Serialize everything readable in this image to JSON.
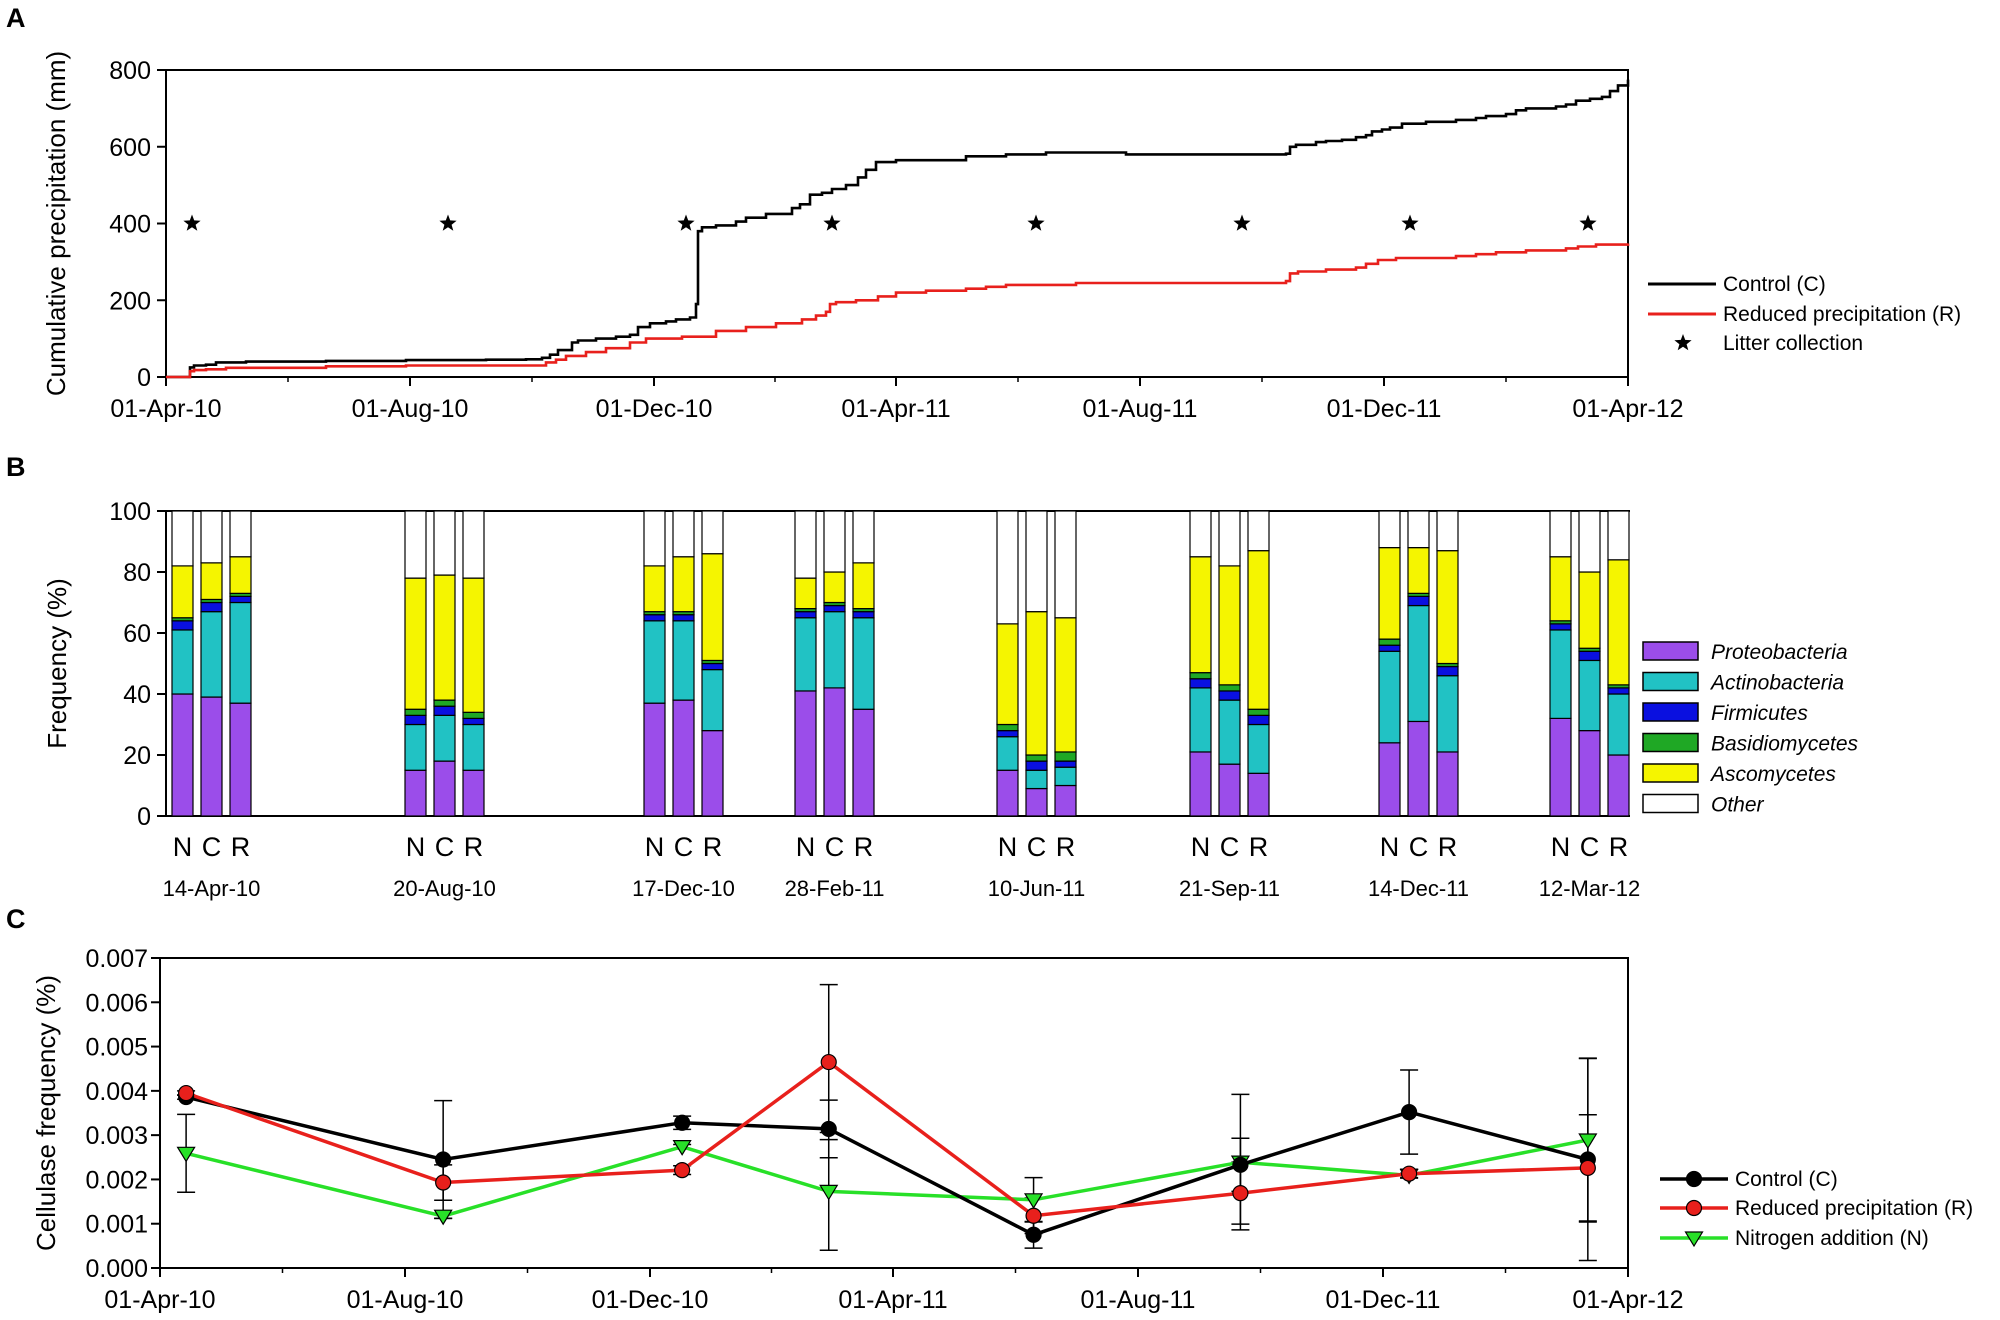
{
  "chart_data": [
    {
      "panel": "A",
      "type": "line",
      "ylabel": "Cumulative precipitation (mm)",
      "ylim": [
        0,
        800
      ],
      "yticks": [
        0,
        200,
        400,
        600,
        800
      ],
      "xdomain_days": [
        0,
        731
      ],
      "xticks": [
        {
          "label": "01-Apr-10",
          "day": 0
        },
        {
          "label": "01-Aug-10",
          "day": 122
        },
        {
          "label": "01-Dec-10",
          "day": 244
        },
        {
          "label": "01-Apr-11",
          "day": 365
        },
        {
          "label": "01-Aug-11",
          "day": 487
        },
        {
          "label": "01-Dec-11",
          "day": 609
        },
        {
          "label": "01-Apr-12",
          "day": 731
        }
      ],
      "series": [
        {
          "name": "Control (C)",
          "color": "#000000",
          "points": [
            [
              0,
              0
            ],
            [
              10,
              0
            ],
            [
              12,
              25
            ],
            [
              14,
              30
            ],
            [
              20,
              32
            ],
            [
              25,
              38
            ],
            [
              40,
              40
            ],
            [
              80,
              42
            ],
            [
              120,
              44
            ],
            [
              160,
              45
            ],
            [
              180,
              46
            ],
            [
              188,
              50
            ],
            [
              192,
              58
            ],
            [
              196,
              70
            ],
            [
              200,
              70
            ],
            [
              203,
              90
            ],
            [
              206,
              95
            ],
            [
              215,
              100
            ],
            [
              225,
              105
            ],
            [
              232,
              110
            ],
            [
              236,
              130
            ],
            [
              242,
              140
            ],
            [
              250,
              145
            ],
            [
              255,
              150
            ],
            [
              262,
              155
            ],
            [
              265,
              190
            ],
            [
              266,
              380
            ],
            [
              268,
              390
            ],
            [
              275,
              395
            ],
            [
              285,
              405
            ],
            [
              290,
              415
            ],
            [
              300,
              425
            ],
            [
              310,
              425
            ],
            [
              313,
              440
            ],
            [
              317,
              450
            ],
            [
              322,
              475
            ],
            [
              328,
              480
            ],
            [
              333,
              490
            ],
            [
              340,
              500
            ],
            [
              346,
              520
            ],
            [
              350,
              540
            ],
            [
              355,
              560
            ],
            [
              365,
              565
            ],
            [
              400,
              575
            ],
            [
              420,
              580
            ],
            [
              440,
              585
            ],
            [
              460,
              585
            ],
            [
              480,
              580
            ],
            [
              530,
              580
            ],
            [
              555,
              580
            ],
            [
              560,
              582
            ],
            [
              562,
              600
            ],
            [
              565,
              605
            ],
            [
              575,
              612
            ],
            [
              580,
              615
            ],
            [
              588,
              618
            ],
            [
              595,
              625
            ],
            [
              600,
              630
            ],
            [
              603,
              640
            ],
            [
              608,
              645
            ],
            [
              612,
              650
            ],
            [
              618,
              660
            ],
            [
              630,
              665
            ],
            [
              645,
              670
            ],
            [
              655,
              675
            ],
            [
              660,
              680
            ],
            [
              670,
              685
            ],
            [
              675,
              695
            ],
            [
              680,
              700
            ],
            [
              695,
              705
            ],
            [
              700,
              710
            ],
            [
              705,
              720
            ],
            [
              712,
              725
            ],
            [
              718,
              730
            ],
            [
              722,
              745
            ],
            [
              726,
              760
            ],
            [
              731,
              775
            ]
          ]
        },
        {
          "name": "Reduced precipitation (R)",
          "color": "#e8201c",
          "points": [
            [
              0,
              0
            ],
            [
              10,
              0
            ],
            [
              12,
              15
            ],
            [
              14,
              18
            ],
            [
              20,
              20
            ],
            [
              30,
              24
            ],
            [
              80,
              28
            ],
            [
              120,
              30
            ],
            [
              188,
              30
            ],
            [
              190,
              38
            ],
            [
              195,
              45
            ],
            [
              200,
              55
            ],
            [
              210,
              65
            ],
            [
              220,
              75
            ],
            [
              232,
              90
            ],
            [
              240,
              100
            ],
            [
              258,
              105
            ],
            [
              275,
              120
            ],
            [
              290,
              130
            ],
            [
              305,
              140
            ],
            [
              318,
              150
            ],
            [
              325,
              160
            ],
            [
              330,
              170
            ],
            [
              332,
              190
            ],
            [
              335,
              195
            ],
            [
              345,
              200
            ],
            [
              356,
              210
            ],
            [
              365,
              220
            ],
            [
              380,
              225
            ],
            [
              400,
              230
            ],
            [
              410,
              235
            ],
            [
              420,
              240
            ],
            [
              455,
              245
            ],
            [
              555,
              245
            ],
            [
              560,
              250
            ],
            [
              562,
              270
            ],
            [
              566,
              275
            ],
            [
              580,
              280
            ],
            [
              595,
              285
            ],
            [
              600,
              295
            ],
            [
              606,
              305
            ],
            [
              615,
              310
            ],
            [
              635,
              310
            ],
            [
              645,
              315
            ],
            [
              655,
              320
            ],
            [
              665,
              325
            ],
            [
              680,
              330
            ],
            [
              700,
              335
            ],
            [
              706,
              340
            ],
            [
              715,
              345
            ],
            [
              731,
              348
            ]
          ]
        },
        {
          "name": "Litter collection",
          "marker": "star",
          "x_days": [
            13,
            141,
            260,
            333,
            435,
            538,
            622,
            711
          ],
          "y": 400
        }
      ]
    },
    {
      "panel": "B",
      "type": "bar",
      "stacked": true,
      "ylabel": "Frequency (%)",
      "ylim": [
        0,
        100
      ],
      "yticks": [
        0,
        20,
        40,
        60,
        80,
        100
      ],
      "treatments": [
        "N",
        "C",
        "R"
      ],
      "dates": [
        "14-Apr-10",
        "20-Aug-10",
        "17-Dec-10",
        "28-Feb-11",
        "10-Jun-11",
        "21-Sep-11",
        "14-Dec-11",
        "12-Mar-12"
      ],
      "layers": [
        {
          "name": "Proteobacteria",
          "color": "#9b4dea"
        },
        {
          "name": "Actinobacteria",
          "color": "#21c2c4"
        },
        {
          "name": "Firmicutes",
          "color": "#0a10e0"
        },
        {
          "name": "Basidiomycetes",
          "color": "#1fa825"
        },
        {
          "name": "Ascomycetes",
          "color": "#f5f500"
        },
        {
          "name": "Other",
          "color": "#ffffff"
        }
      ],
      "values": [
        [
          [
            40,
            21,
            3,
            1,
            17,
            18
          ],
          [
            39,
            28,
            3,
            1,
            12,
            17
          ],
          [
            37,
            33,
            2,
            1,
            12,
            15
          ]
        ],
        [
          [
            15,
            15,
            3,
            2,
            43,
            22
          ],
          [
            18,
            15,
            3,
            2,
            41,
            21
          ],
          [
            15,
            15,
            2,
            2,
            44,
            22
          ]
        ],
        [
          [
            37,
            27,
            2,
            1,
            15,
            18
          ],
          [
            38,
            26,
            2,
            1,
            18,
            15
          ],
          [
            28,
            20,
            2,
            1,
            35,
            14
          ]
        ],
        [
          [
            41,
            24,
            2,
            1,
            10,
            22
          ],
          [
            42,
            25,
            2,
            1,
            10,
            20
          ],
          [
            35,
            30,
            2,
            1,
            15,
            17
          ]
        ],
        [
          [
            15,
            11,
            2,
            2,
            33,
            37
          ],
          [
            9,
            6,
            3,
            2,
            47,
            33
          ],
          [
            10,
            6,
            2,
            3,
            44,
            35
          ]
        ],
        [
          [
            21,
            21,
            3,
            2,
            38,
            15
          ],
          [
            17,
            21,
            3,
            2,
            39,
            18
          ],
          [
            14,
            16,
            3,
            2,
            52,
            13
          ]
        ],
        [
          [
            24,
            30,
            2,
            2,
            30,
            12
          ],
          [
            31,
            38,
            3,
            1,
            15,
            12
          ],
          [
            21,
            25,
            3,
            1,
            37,
            13
          ]
        ],
        [
          [
            32,
            29,
            2,
            1,
            21,
            15
          ],
          [
            28,
            23,
            3,
            1,
            25,
            20
          ],
          [
            20,
            20,
            2,
            1,
            41,
            16
          ]
        ]
      ]
    },
    {
      "panel": "C",
      "type": "line",
      "ylabel": "Cellulase frequency (%)",
      "ylim": [
        0,
        0.007
      ],
      "yticks": [
        "0.000",
        "0.001",
        "0.002",
        "0.003",
        "0.004",
        "0.005",
        "0.006",
        "0.007"
      ],
      "xdomain_days": [
        0,
        731
      ],
      "xticks": [
        {
          "label": "01-Apr-10",
          "day": 0
        },
        {
          "label": "01-Aug-10",
          "day": 122
        },
        {
          "label": "01-Dec-10",
          "day": 244
        },
        {
          "label": "01-Apr-11",
          "day": 365
        },
        {
          "label": "01-Aug-11",
          "day": 487
        },
        {
          "label": "01-Dec-11",
          "day": 609
        },
        {
          "label": "01-Apr-12",
          "day": 731
        }
      ],
      "x_days": [
        13,
        141,
        260,
        333,
        435,
        538,
        622,
        711
      ],
      "series": [
        {
          "name": "Control (C)",
          "color": "#000000",
          "marker": "circle",
          "values": [
            0.00386,
            0.00245,
            0.00328,
            0.00314,
            0.00075,
            0.00233,
            0.00352,
            0.00245
          ],
          "errors": [
            5e-05,
            0.00133,
            0.00015,
            0.00065,
            0.0003,
            0.0006,
            0.00095,
            0.00228
          ]
        },
        {
          "name": "Reduced precipitation (R)",
          "color": "#e8201c",
          "marker": "circle",
          "values": [
            0.00395,
            0.00193,
            0.00221,
            0.00465,
            0.00118,
            0.00169,
            0.00213,
            0.00226
          ],
          "errors": [
            5e-05,
            0.0004,
            0.0001,
            0.00175,
            0.0004,
            0.0007,
            0.0001,
            0.0012
          ]
        },
        {
          "name": "Nitrogen addition (N)",
          "color": "#28e028",
          "marker": "triangle-down",
          "values": [
            0.00259,
            0.00117,
            0.00274,
            0.00173,
            0.00154,
            0.00239,
            0.00209,
            0.00289
          ],
          "errors": [
            0.00088,
            5e-05,
            5e-05,
            0.00133,
            0.0005,
            0.00153,
            5e-05,
            0.00185
          ]
        }
      ]
    }
  ],
  "panel_letters": [
    "A",
    "B",
    "C"
  ]
}
